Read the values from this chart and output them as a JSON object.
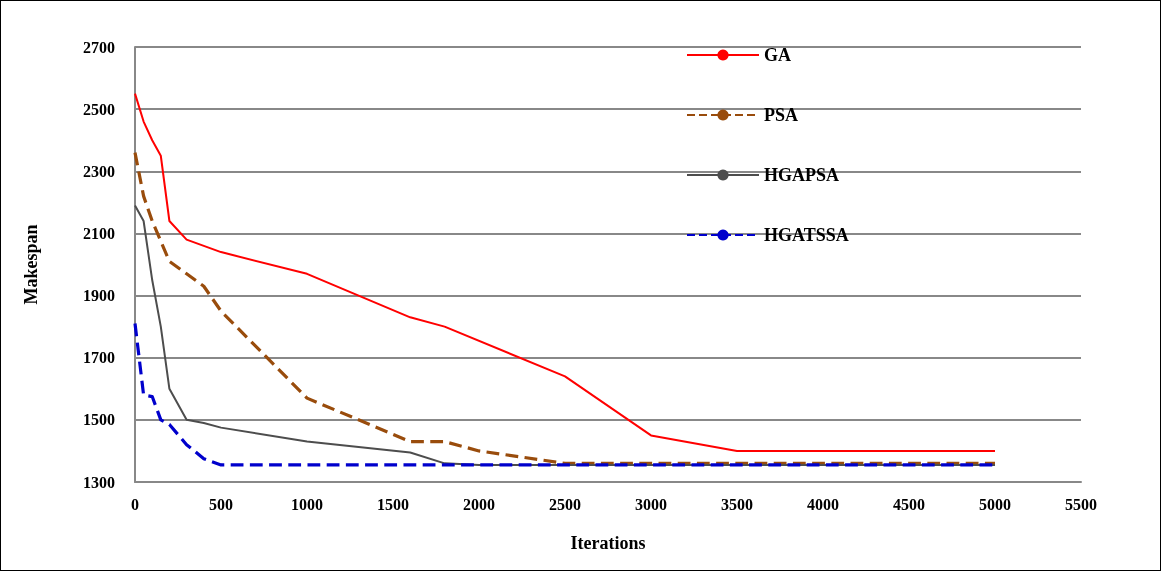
{
  "chart_data": {
    "type": "line",
    "xlabel": "Iterations",
    "ylabel": "Makespan",
    "xlim": [
      0,
      5500
    ],
    "xticks": [
      0,
      500,
      1000,
      1500,
      2000,
      2500,
      3000,
      3500,
      4000,
      4500,
      5000,
      5500
    ],
    "ylim": [
      1300,
      2700
    ],
    "yticks": [
      1300,
      1500,
      1700,
      1900,
      2100,
      2300,
      2500,
      2700
    ],
    "grid": "y",
    "legend": "top right",
    "marker": "none",
    "series": [
      {
        "name": "GA",
        "color": "#ff0000",
        "line_style": "solid",
        "x": [
          0,
          50,
          100,
          150,
          200,
          300,
          500,
          1000,
          1600,
          1800,
          2500,
          3000,
          3500,
          4000,
          4500,
          5000
        ],
        "values": [
          2550,
          2460,
          2400,
          2350,
          2140,
          2080,
          2040,
          1970,
          1830,
          1800,
          1640,
          1450,
          1400,
          1400,
          1400,
          1400
        ]
      },
      {
        "name": "PSA",
        "color": "#994c0c",
        "line_style": "dashed",
        "x": [
          0,
          50,
          100,
          200,
          300,
          400,
          500,
          1000,
          1600,
          1800,
          2000,
          2500,
          3000,
          3500,
          4000,
          4500,
          5000
        ],
        "values": [
          2360,
          2220,
          2140,
          2010,
          1970,
          1930,
          1850,
          1570,
          1430,
          1430,
          1400,
          1360,
          1360,
          1360,
          1360,
          1360,
          1360
        ]
      },
      {
        "name": "HGAPSA",
        "color": "#4d4d4d",
        "line_style": "solid",
        "x": [
          0,
          50,
          100,
          150,
          200,
          300,
          400,
          500,
          1000,
          1600,
          1800,
          2000,
          2500,
          3000,
          3500,
          4000,
          4500,
          5000
        ],
        "values": [
          2190,
          2140,
          1950,
          1800,
          1600,
          1500,
          1490,
          1475,
          1430,
          1395,
          1360,
          1355,
          1355,
          1355,
          1355,
          1355,
          1355,
          1355
        ]
      },
      {
        "name": "HGATSSA",
        "color": "#0000cc",
        "line_style": "dashed",
        "x": [
          0,
          50,
          100,
          150,
          200,
          300,
          400,
          500,
          1000,
          1500,
          2000,
          2500,
          3000,
          3500,
          4000,
          4500,
          5000
        ],
        "values": [
          1810,
          1580,
          1575,
          1500,
          1485,
          1420,
          1375,
          1355,
          1355,
          1355,
          1355,
          1355,
          1355,
          1355,
          1355,
          1355,
          1355
        ]
      }
    ]
  }
}
